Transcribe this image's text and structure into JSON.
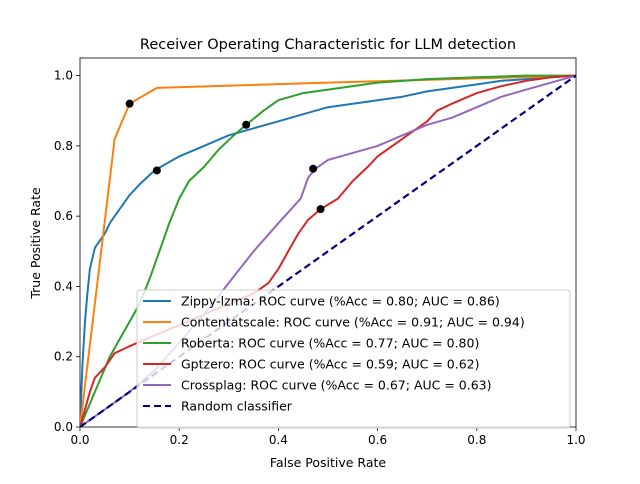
{
  "chart_data": {
    "type": "line",
    "title": "Receiver Operating Characteristic for LLM detection",
    "xlabel": "False Positive Rate",
    "ylabel": "True Positive Rate",
    "xlim": [
      0,
      1
    ],
    "ylim": [
      0,
      1.05
    ],
    "xticks": [
      "0.0",
      "0.2",
      "0.4",
      "0.6",
      "0.8",
      "1.0"
    ],
    "yticks": [
      "0.0",
      "0.2",
      "0.4",
      "0.6",
      "0.8",
      "1.0"
    ],
    "grid": false,
    "legend_position": "lower right",
    "series": [
      {
        "name": "Zippy-lzma: ROC curve (%Acc = 0.80; AUC = 0.86)",
        "color": "#1f77b4",
        "x": [
          0,
          0.005,
          0.01,
          0.015,
          0.02,
          0.03,
          0.04,
          0.05,
          0.06,
          0.07,
          0.08,
          0.1,
          0.12,
          0.15,
          0.2,
          0.25,
          0.3,
          0.35,
          0.4,
          0.45,
          0.5,
          0.55,
          0.6,
          0.65,
          0.7,
          0.75,
          0.8,
          0.85,
          0.9,
          0.95,
          1.0
        ],
        "y": [
          0,
          0.18,
          0.3,
          0.38,
          0.45,
          0.51,
          0.53,
          0.55,
          0.58,
          0.6,
          0.62,
          0.66,
          0.69,
          0.73,
          0.77,
          0.8,
          0.83,
          0.85,
          0.87,
          0.89,
          0.91,
          0.92,
          0.93,
          0.94,
          0.955,
          0.965,
          0.975,
          0.985,
          0.99,
          0.995,
          1.0
        ],
        "marker": [
          0.155,
          0.73
        ]
      },
      {
        "name": "Contentatscale: ROC curve (%Acc = 0.91; AUC = 0.94)",
        "color": "#ff7f0e",
        "x": [
          0,
          0.07,
          0.1,
          0.155,
          0.5,
          1.0
        ],
        "y": [
          0,
          0.82,
          0.92,
          0.965,
          0.98,
          1.0
        ],
        "marker": [
          0.1,
          0.92
        ]
      },
      {
        "name": "Roberta: ROC curve (%Acc = 0.77; AUC = 0.80)",
        "color": "#2ca02c",
        "x": [
          0,
          0.03,
          0.06,
          0.08,
          0.1,
          0.12,
          0.14,
          0.16,
          0.18,
          0.2,
          0.22,
          0.25,
          0.28,
          0.31,
          0.335,
          0.37,
          0.4,
          0.45,
          0.5,
          0.55,
          0.6,
          0.7,
          0.8,
          0.9,
          1.0
        ],
        "y": [
          0,
          0.1,
          0.2,
          0.25,
          0.3,
          0.35,
          0.42,
          0.5,
          0.58,
          0.65,
          0.7,
          0.74,
          0.79,
          0.83,
          0.86,
          0.9,
          0.93,
          0.95,
          0.96,
          0.97,
          0.98,
          0.99,
          0.995,
          1.0,
          1.0
        ],
        "marker": [
          0.335,
          0.86
        ]
      },
      {
        "name": "Gptzero: ROC curve (%Acc = 0.59; AUC = 0.62)",
        "color": "#d62728",
        "x": [
          0,
          0.01,
          0.02,
          0.03,
          0.05,
          0.07,
          0.1,
          0.15,
          0.2,
          0.25,
          0.3,
          0.35,
          0.38,
          0.4,
          0.42,
          0.44,
          0.46,
          0.485,
          0.52,
          0.55,
          0.58,
          0.6,
          0.65,
          0.7,
          0.72,
          0.75,
          0.8,
          0.85,
          0.9,
          0.95,
          1.0
        ],
        "y": [
          0,
          0.05,
          0.1,
          0.14,
          0.17,
          0.21,
          0.23,
          0.26,
          0.29,
          0.32,
          0.35,
          0.38,
          0.41,
          0.45,
          0.5,
          0.55,
          0.59,
          0.62,
          0.65,
          0.7,
          0.74,
          0.77,
          0.82,
          0.87,
          0.9,
          0.92,
          0.95,
          0.97,
          0.985,
          0.995,
          1.0
        ],
        "marker": [
          0.485,
          0.62
        ]
      },
      {
        "name": "Crossplag: ROC curve (%Acc = 0.67; AUC = 0.63)",
        "color": "#9467bd",
        "x": [
          0,
          0.05,
          0.1,
          0.15,
          0.2,
          0.25,
          0.3,
          0.35,
          0.4,
          0.445,
          0.46,
          0.475,
          0.5,
          0.55,
          0.6,
          0.65,
          0.7,
          0.75,
          0.8,
          0.85,
          0.9,
          0.95,
          1.0
        ],
        "y": [
          0,
          0.05,
          0.1,
          0.16,
          0.24,
          0.32,
          0.41,
          0.5,
          0.58,
          0.65,
          0.71,
          0.735,
          0.76,
          0.78,
          0.8,
          0.83,
          0.86,
          0.88,
          0.91,
          0.94,
          0.96,
          0.98,
          1.0
        ],
        "marker": [
          0.47,
          0.735
        ]
      },
      {
        "name": "Random classifier",
        "color": "#000080",
        "dashed": true,
        "x": [
          0,
          1
        ],
        "y": [
          0,
          1
        ]
      }
    ]
  }
}
